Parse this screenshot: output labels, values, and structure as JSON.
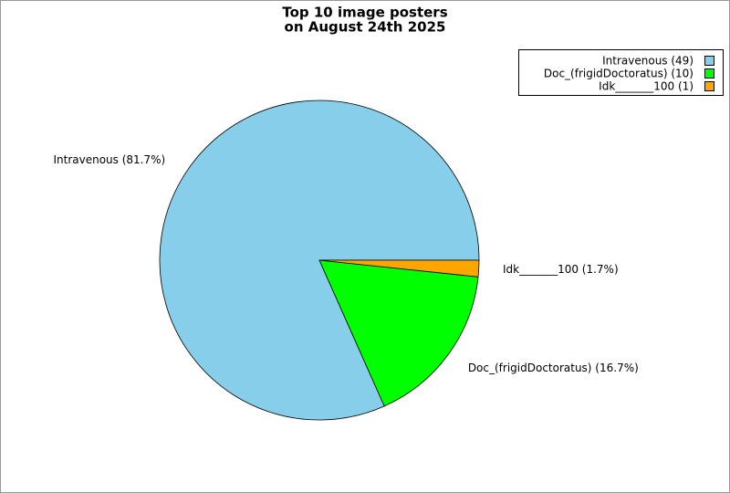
{
  "chart_data": {
    "type": "pie",
    "title": [
      "Top 10 image posters",
      "on August 24th 2025"
    ],
    "labels": [
      "Intravenous (49)",
      "Doc_(frigidDoctoratus) (10)",
      "Idk_______100 (1)"
    ],
    "values": [
      49,
      10,
      1
    ],
    "value_labels": [
      "Intravenous (81.7%)",
      "Doc_(frigidDoctoratus) (16.7%)",
      "Idk_______100 (1.7%)"
    ],
    "colors": [
      "#87ceeb",
      "#00ff00",
      "#ffa500"
    ],
    "legend": "upper right"
  }
}
